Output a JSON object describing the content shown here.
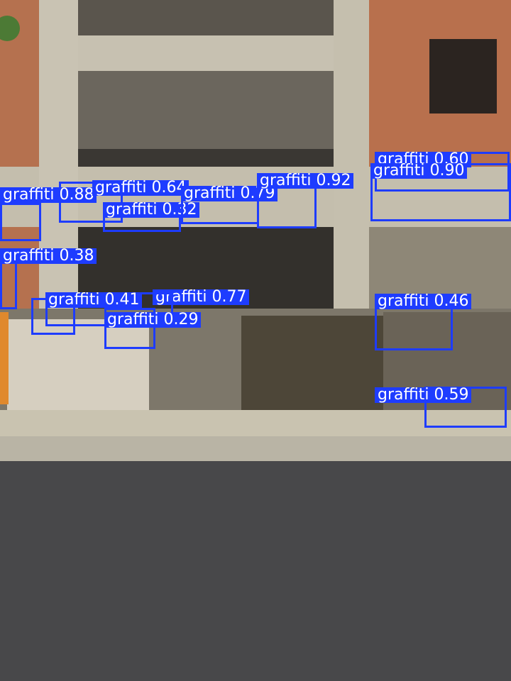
{
  "scene": {
    "description_colors": {
      "brick": "#b86e4d",
      "concrete": "#b9b3a3",
      "dark_interior": "#2a2826",
      "fence": "#7a7568",
      "sidewalk": "#c8c2ae",
      "road": "#4a4a4c",
      "detection_blue": "#1e3cff"
    }
  },
  "detections": [
    {
      "label": "graffiti 0.88"
    },
    {
      "label": "graffiti 0.64"
    },
    {
      "label": "graffiti 0.32"
    },
    {
      "label": "graffiti 0.79"
    },
    {
      "label": "graffiti 0.92"
    },
    {
      "label": "graffiti 0.60"
    },
    {
      "label": "graffiti 0.90"
    },
    {
      "label": "graffiti 0.38"
    },
    {
      "label": "graffiti 0.77"
    },
    {
      "label": "graffiti 0.41"
    },
    {
      "label": "graffiti 0.29"
    },
    {
      "label": "graffiti 0.46"
    },
    {
      "label": "graffiti 0.59"
    }
  ]
}
